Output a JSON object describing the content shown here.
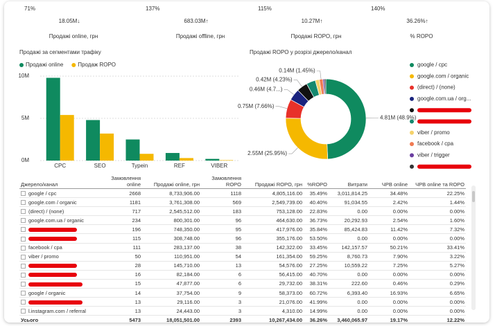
{
  "kpis": [
    {
      "change": "71%",
      "value": "18.05M↓",
      "label": "Продажі online, грн",
      "color": "#e8312a"
    },
    {
      "change": "137%",
      "value": "683.03M↑",
      "label": "Продажі offline, грн",
      "color": "#0f8a5f"
    },
    {
      "change": "115%",
      "value": "10.27M↑",
      "label": "Продажі ROPO, грн",
      "color": "#0f8a5f"
    },
    {
      "change": "140%",
      "value": "36.26%↑",
      "label": "% ROPO",
      "color": "#0f8a5f"
    }
  ],
  "chart_data": [
    {
      "type": "bar",
      "title": "Продажі за сегментами трафіку",
      "categories": [
        "CPC",
        "SEO",
        "Typein",
        "REF",
        "VIBER"
      ],
      "series": [
        {
          "name": "Продажі online",
          "color": "#0f8a5f",
          "values": [
            9800000,
            4800000,
            2500000,
            900000,
            200000
          ]
        },
        {
          "name": "Продаж ROPO",
          "color": "#f5b800",
          "values": [
            5400000,
            3200000,
            800000,
            300000,
            50000
          ]
        }
      ],
      "ylim": [
        0,
        10000000
      ],
      "yticks": [
        {
          "value": 0,
          "label": "0M"
        },
        {
          "value": 5000000,
          "label": "5M"
        },
        {
          "value": 10000000,
          "label": "10M"
        }
      ],
      "grid": true
    },
    {
      "type": "donut",
      "title": "Продажі ROPO у розрізі джерело/канал",
      "categories": [
        "google / cpc",
        "google.com / organic",
        "(direct) / (none)",
        "google.com.ua / org...",
        null,
        null,
        "viber / promo",
        "facebook / cpa",
        "viber / trigger",
        null
      ],
      "values": [
        4810000,
        2550000,
        750000,
        460000,
        420000,
        360000,
        160000,
        140000,
        60000,
        55000
      ],
      "value_labels": [
        "4.81M (48.9%)",
        "2.55M (25.95%)",
        "0.75M (7.66%)",
        "0.46M (4.7...)",
        "0.42M (4.23%)",
        null,
        null,
        "0.14M (1.45%)",
        null,
        null
      ],
      "colors": [
        "#0f8a5f",
        "#f5b800",
        "#e8312a",
        "#1a237e",
        "#111111",
        "#14886e",
        "#f5d26a",
        "#f07a52",
        "#6a3ea1",
        "#333333"
      ]
    }
  ],
  "table": {
    "header": [
      "Джерело/канал",
      "Замовлення online",
      "Продажі online, грн",
      "Замовлення ROPO",
      "Продажі ROPO, грн",
      "%ROPO",
      "Витрати",
      "ЧРВ online",
      "ЧРВ online та ROPO"
    ],
    "rows": [
      [
        "google / cpc",
        "2668",
        "8,733,906.00",
        "1118",
        "4,805,116.00",
        "35.49%",
        "3,011,814.25",
        "34.48%",
        "22.25%"
      ],
      [
        "google.com / organic",
        "1181",
        "3,761,308.00",
        "569",
        "2,549,739.00",
        "40.40%",
        "91,034.55",
        "2.42%",
        "1.44%"
      ],
      [
        "(direct) / (none)",
        "717",
        "2,545,512.00",
        "183",
        "753,128.00",
        "22.83%",
        "0.00",
        "0.00%",
        "0.00%"
      ],
      [
        "google.com.ua / organic",
        "234",
        "800,301.00",
        "96",
        "464,630.00",
        "36.73%",
        "20,292.93",
        "2.54%",
        "1.60%"
      ],
      [
        null,
        "196",
        "748,350.00",
        "95",
        "417,976.00",
        "35.84%",
        "85,424.83",
        "11.42%",
        "7.32%"
      ],
      [
        null,
        "115",
        "308,748.00",
        "96",
        "355,176.00",
        "53.50%",
        "0.00",
        "0.00%",
        "0.00%"
      ],
      [
        "facebook / cpa",
        "111",
        "283,137.00",
        "38",
        "142,322.00",
        "33.45%",
        "142,157.57",
        "50.21%",
        "33.41%"
      ],
      [
        "viber / promo",
        "50",
        "110,951.00",
        "54",
        "161,354.00",
        "59.25%",
        "8,760.73",
        "7.90%",
        "3.22%"
      ],
      [
        null,
        "28",
        "145,710.00",
        "13",
        "54,576.00",
        "27.25%",
        "10,559.22",
        "7.25%",
        "5.27%"
      ],
      [
        null,
        "16",
        "82,184.00",
        "6",
        "56,415.00",
        "40.70%",
        "0.00",
        "0.00%",
        "0.00%"
      ],
      [
        null,
        "15",
        "47,877.00",
        "6",
        "29,732.00",
        "38.31%",
        "222.60",
        "0.46%",
        "0.29%"
      ],
      [
        "google / organic",
        "14",
        "37,754.00",
        "9",
        "58,373.00",
        "60.72%",
        "6,393.40",
        "16.93%",
        "6.65%"
      ],
      [
        null,
        "13",
        "29,116.00",
        "3",
        "21,076.00",
        "41.99%",
        "0.00",
        "0.00%",
        "0.00%"
      ],
      [
        "l.instagram.com / referral",
        "13",
        "24,443.00",
        "3",
        "4,310.00",
        "14.99%",
        "0.00",
        "0.00%",
        "0.00%"
      ]
    ],
    "total": [
      "Усього",
      "5473",
      "18,051,501.00",
      "2393",
      "10,267,434.00",
      "36.26%",
      "3,460,065.97",
      "19.17%",
      "12.22%"
    ]
  }
}
